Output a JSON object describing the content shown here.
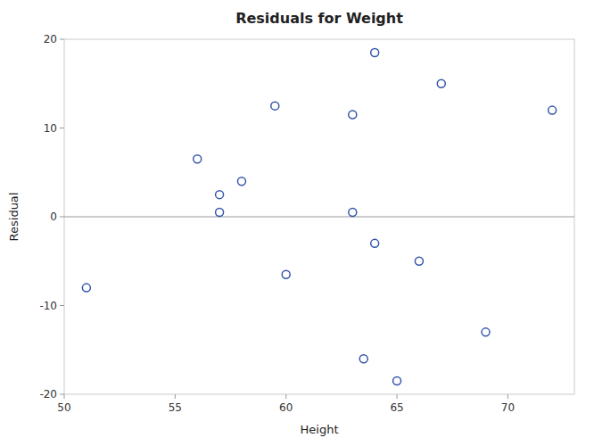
{
  "chart_data": {
    "type": "scatter",
    "title": "Residuals for Weight",
    "xlabel": "Height",
    "ylabel": "Residual",
    "xlim": [
      50,
      73
    ],
    "ylim": [
      -20,
      20
    ],
    "xticks": [
      50,
      55,
      60,
      65,
      70
    ],
    "yticks": [
      -20,
      -10,
      0,
      10,
      20
    ],
    "x": [
      51,
      56,
      57,
      57,
      58,
      59.5,
      60,
      63,
      63,
      63.5,
      64,
      64,
      65,
      66,
      67,
      69,
      72
    ],
    "values": [
      -8,
      6.5,
      0.5,
      2.5,
      4,
      12.5,
      -6.5,
      11.5,
      0.5,
      -16,
      18.5,
      -3,
      -18.5,
      -5,
      15,
      -13,
      12
    ],
    "color": "#3355aa",
    "marker": "circle",
    "hline": 0,
    "grid": false
  }
}
